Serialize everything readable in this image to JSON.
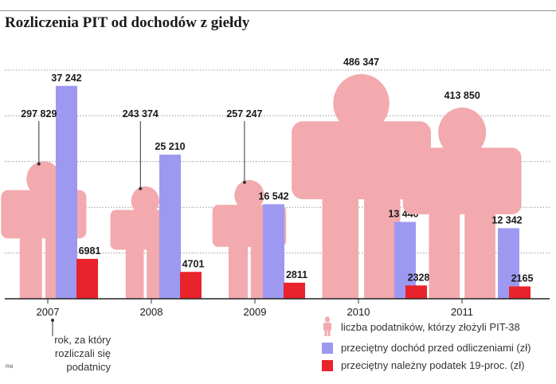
{
  "title": "Rozliczenia PIT od dochodów z giełdy",
  "credit": "RM",
  "note": [
    "rok, za który",
    "rozliczali się",
    "podatnicy"
  ],
  "legend": {
    "taxpayers": "liczba podatników, którzy złożyli PIT-38",
    "income": "przeciętny dochód przed odliczeniami (zł)",
    "tax": "przeciętny należny podatek 19-proc. (zł)"
  },
  "colors": {
    "taxpayers": "#f2aaae",
    "income": "#9d99f0",
    "tax": "#e8232c",
    "grid": "#9a9a9a"
  },
  "chart_data": {
    "type": "bar",
    "categories": [
      "2007",
      "2008",
      "2009",
      "2010",
      "2011"
    ],
    "series": [
      {
        "key": "taxpayers",
        "name": "liczba podatników, którzy złożyli PIT-38",
        "values": [
          297829,
          243374,
          257247,
          486347,
          413850
        ],
        "labels": [
          "297 829",
          "243 374",
          "257 247",
          "486 347",
          "413 850"
        ]
      },
      {
        "key": "income",
        "name": "przeciętny dochód przed odliczeniami (zł)",
        "values": [
          37242,
          25210,
          16542,
          13440,
          12342
        ],
        "labels": [
          "37 242",
          "25 210",
          "16 542",
          "13 440",
          "12 342"
        ]
      },
      {
        "key": "tax",
        "name": "przeciętny należny podatek 19-proc. (zł)",
        "values": [
          6981,
          4701,
          2811,
          2328,
          2165
        ],
        "labels": [
          "6981",
          "4701",
          "2811",
          "2328",
          "2165"
        ]
      }
    ],
    "ylim": [
      0,
      40000
    ],
    "grid": true
  }
}
